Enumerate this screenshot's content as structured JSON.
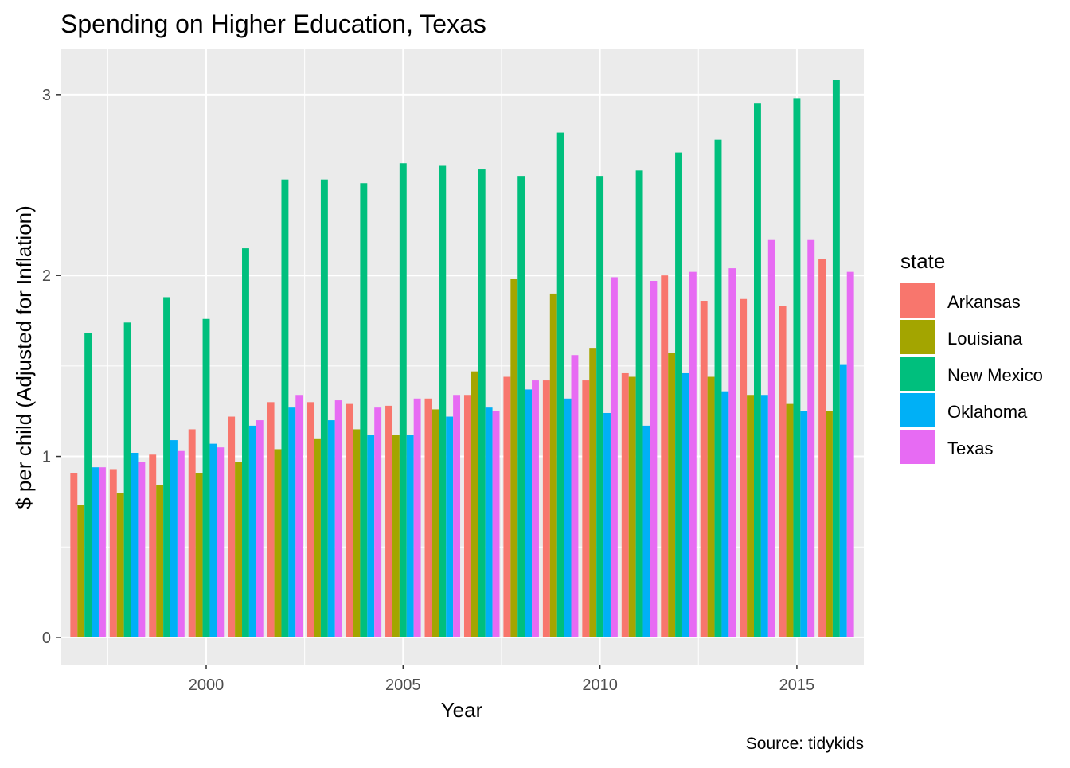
{
  "chart_data": {
    "type": "bar",
    "title": "Spending on Higher Education, Texas",
    "xlabel": "Year",
    "ylabel": "$ per child (Adjusted for Inflation)",
    "caption": "Source: tidykids",
    "legend_title": "state",
    "legend_position": "right",
    "grid": true,
    "xlim": [
      1996.3,
      2016.7
    ],
    "ylim": [
      -0.15,
      3.25
    ],
    "x_ticks": [
      2000,
      2005,
      2010,
      2015
    ],
    "y_ticks": [
      0,
      1,
      2,
      3
    ],
    "x_tick_labels": [
      "2000",
      "2005",
      "2010",
      "2015"
    ],
    "y_tick_labels": [
      "0",
      "1",
      "2",
      "3"
    ],
    "categories": [
      1997,
      1998,
      1999,
      2000,
      2001,
      2002,
      2003,
      2004,
      2005,
      2006,
      2007,
      2008,
      2009,
      2010,
      2011,
      2012,
      2013,
      2014,
      2015,
      2016
    ],
    "series": [
      {
        "name": "Arkansas",
        "color": "#F8766D",
        "values": [
          0.91,
          0.93,
          1.01,
          1.15,
          1.22,
          1.3,
          1.3,
          1.29,
          1.28,
          1.32,
          1.34,
          1.44,
          1.42,
          1.42,
          1.46,
          2.0,
          1.86,
          1.87,
          1.83,
          2.09
        ]
      },
      {
        "name": "Louisiana",
        "color": "#A3A500",
        "values": [
          0.73,
          0.8,
          0.84,
          0.91,
          0.97,
          1.04,
          1.1,
          1.15,
          1.12,
          1.26,
          1.47,
          1.98,
          1.9,
          1.6,
          1.44,
          1.57,
          1.44,
          1.34,
          1.29,
          1.25
        ]
      },
      {
        "name": "New Mexico",
        "color": "#00BF7D",
        "values": [
          1.68,
          1.74,
          1.88,
          1.76,
          2.15,
          2.53,
          2.53,
          2.51,
          2.62,
          2.61,
          2.59,
          2.55,
          2.79,
          2.55,
          2.58,
          2.68,
          2.75,
          2.95,
          2.98,
          3.08
        ]
      },
      {
        "name": "Oklahoma",
        "color": "#00B0F6",
        "values": [
          0.94,
          1.02,
          1.09,
          1.07,
          1.17,
          1.27,
          1.2,
          1.12,
          1.12,
          1.22,
          1.27,
          1.37,
          1.32,
          1.24,
          1.17,
          1.46,
          1.36,
          1.34,
          1.25,
          1.51
        ]
      },
      {
        "name": "Texas",
        "color": "#E76BF3",
        "values": [
          0.94,
          0.97,
          1.03,
          1.05,
          1.2,
          1.34,
          1.31,
          1.27,
          1.32,
          1.34,
          1.25,
          1.42,
          1.56,
          1.99,
          1.97,
          2.02,
          2.04,
          2.2,
          2.2,
          2.02
        ]
      }
    ]
  }
}
